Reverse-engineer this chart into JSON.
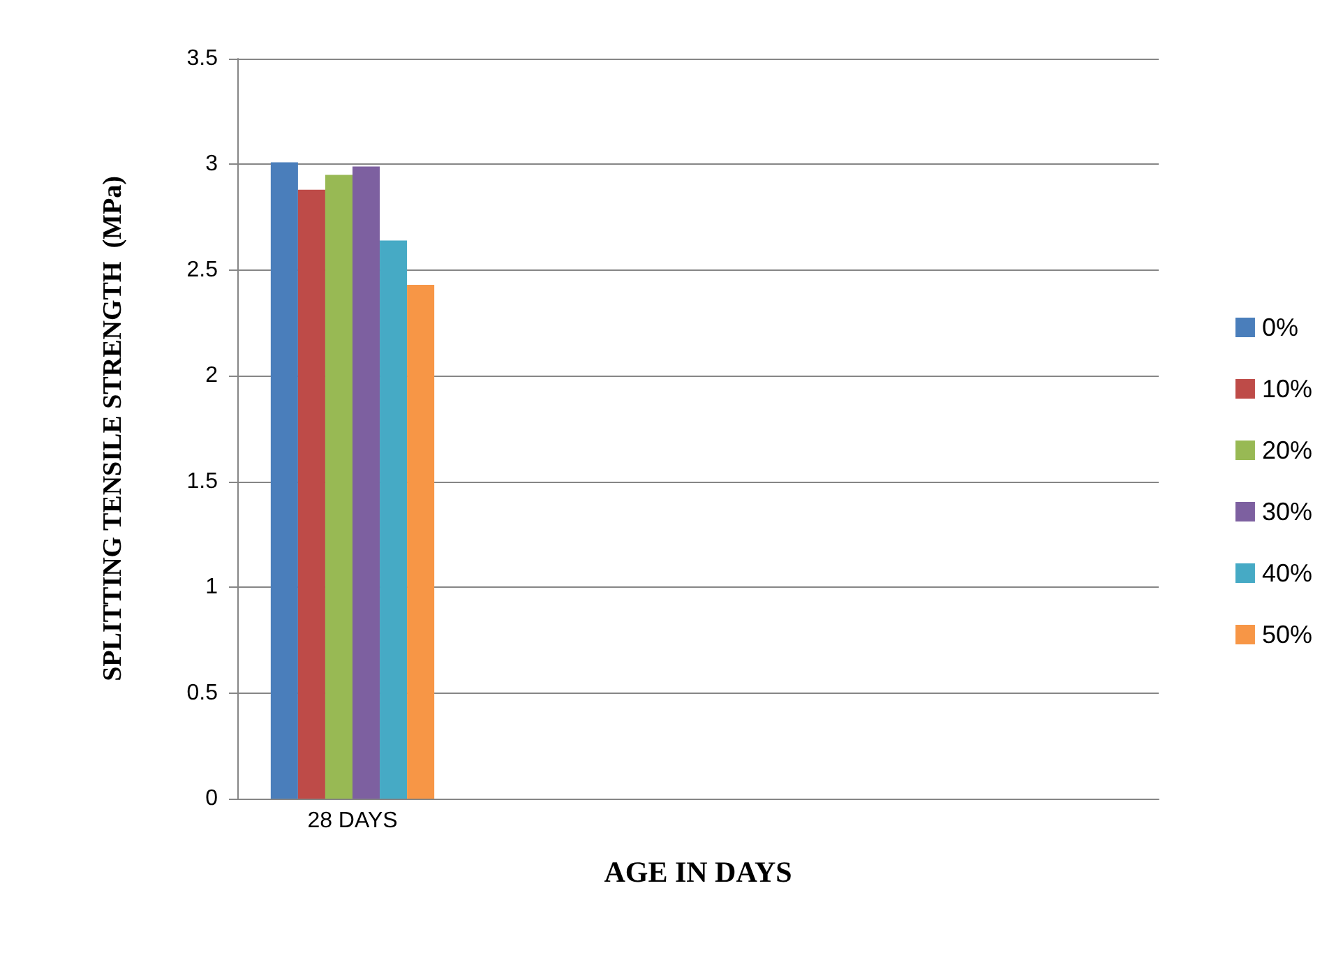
{
  "chart_data": {
    "type": "bar",
    "xlabel": "AGE IN DAYS",
    "ylabel": "SPLITTING TENSILE STRENGTH  (MPa)",
    "categories": [
      "28 DAYS",
      null,
      null,
      null
    ],
    "series": [
      {
        "name": "0%",
        "color": "#4a7ebb",
        "values": [
          3.01,
          null,
          null,
          null
        ]
      },
      {
        "name": "10%",
        "color": "#be4b48",
        "values": [
          2.88,
          null,
          null,
          null
        ]
      },
      {
        "name": "20%",
        "color": "#98b954",
        "values": [
          2.95,
          null,
          null,
          null
        ]
      },
      {
        "name": "30%",
        "color": "#7d60a0",
        "values": [
          2.99,
          null,
          null,
          null
        ]
      },
      {
        "name": "40%",
        "color": "#46aac5",
        "values": [
          2.64,
          null,
          null,
          null
        ]
      },
      {
        "name": "50%",
        "color": "#f79646",
        "values": [
          2.43,
          null,
          null,
          null
        ]
      }
    ],
    "ylim": [
      0,
      3.5
    ],
    "yticks": [
      0,
      0.5,
      1,
      1.5,
      2,
      2.5,
      3,
      3.5
    ],
    "grid": "y",
    "legend": "right"
  }
}
